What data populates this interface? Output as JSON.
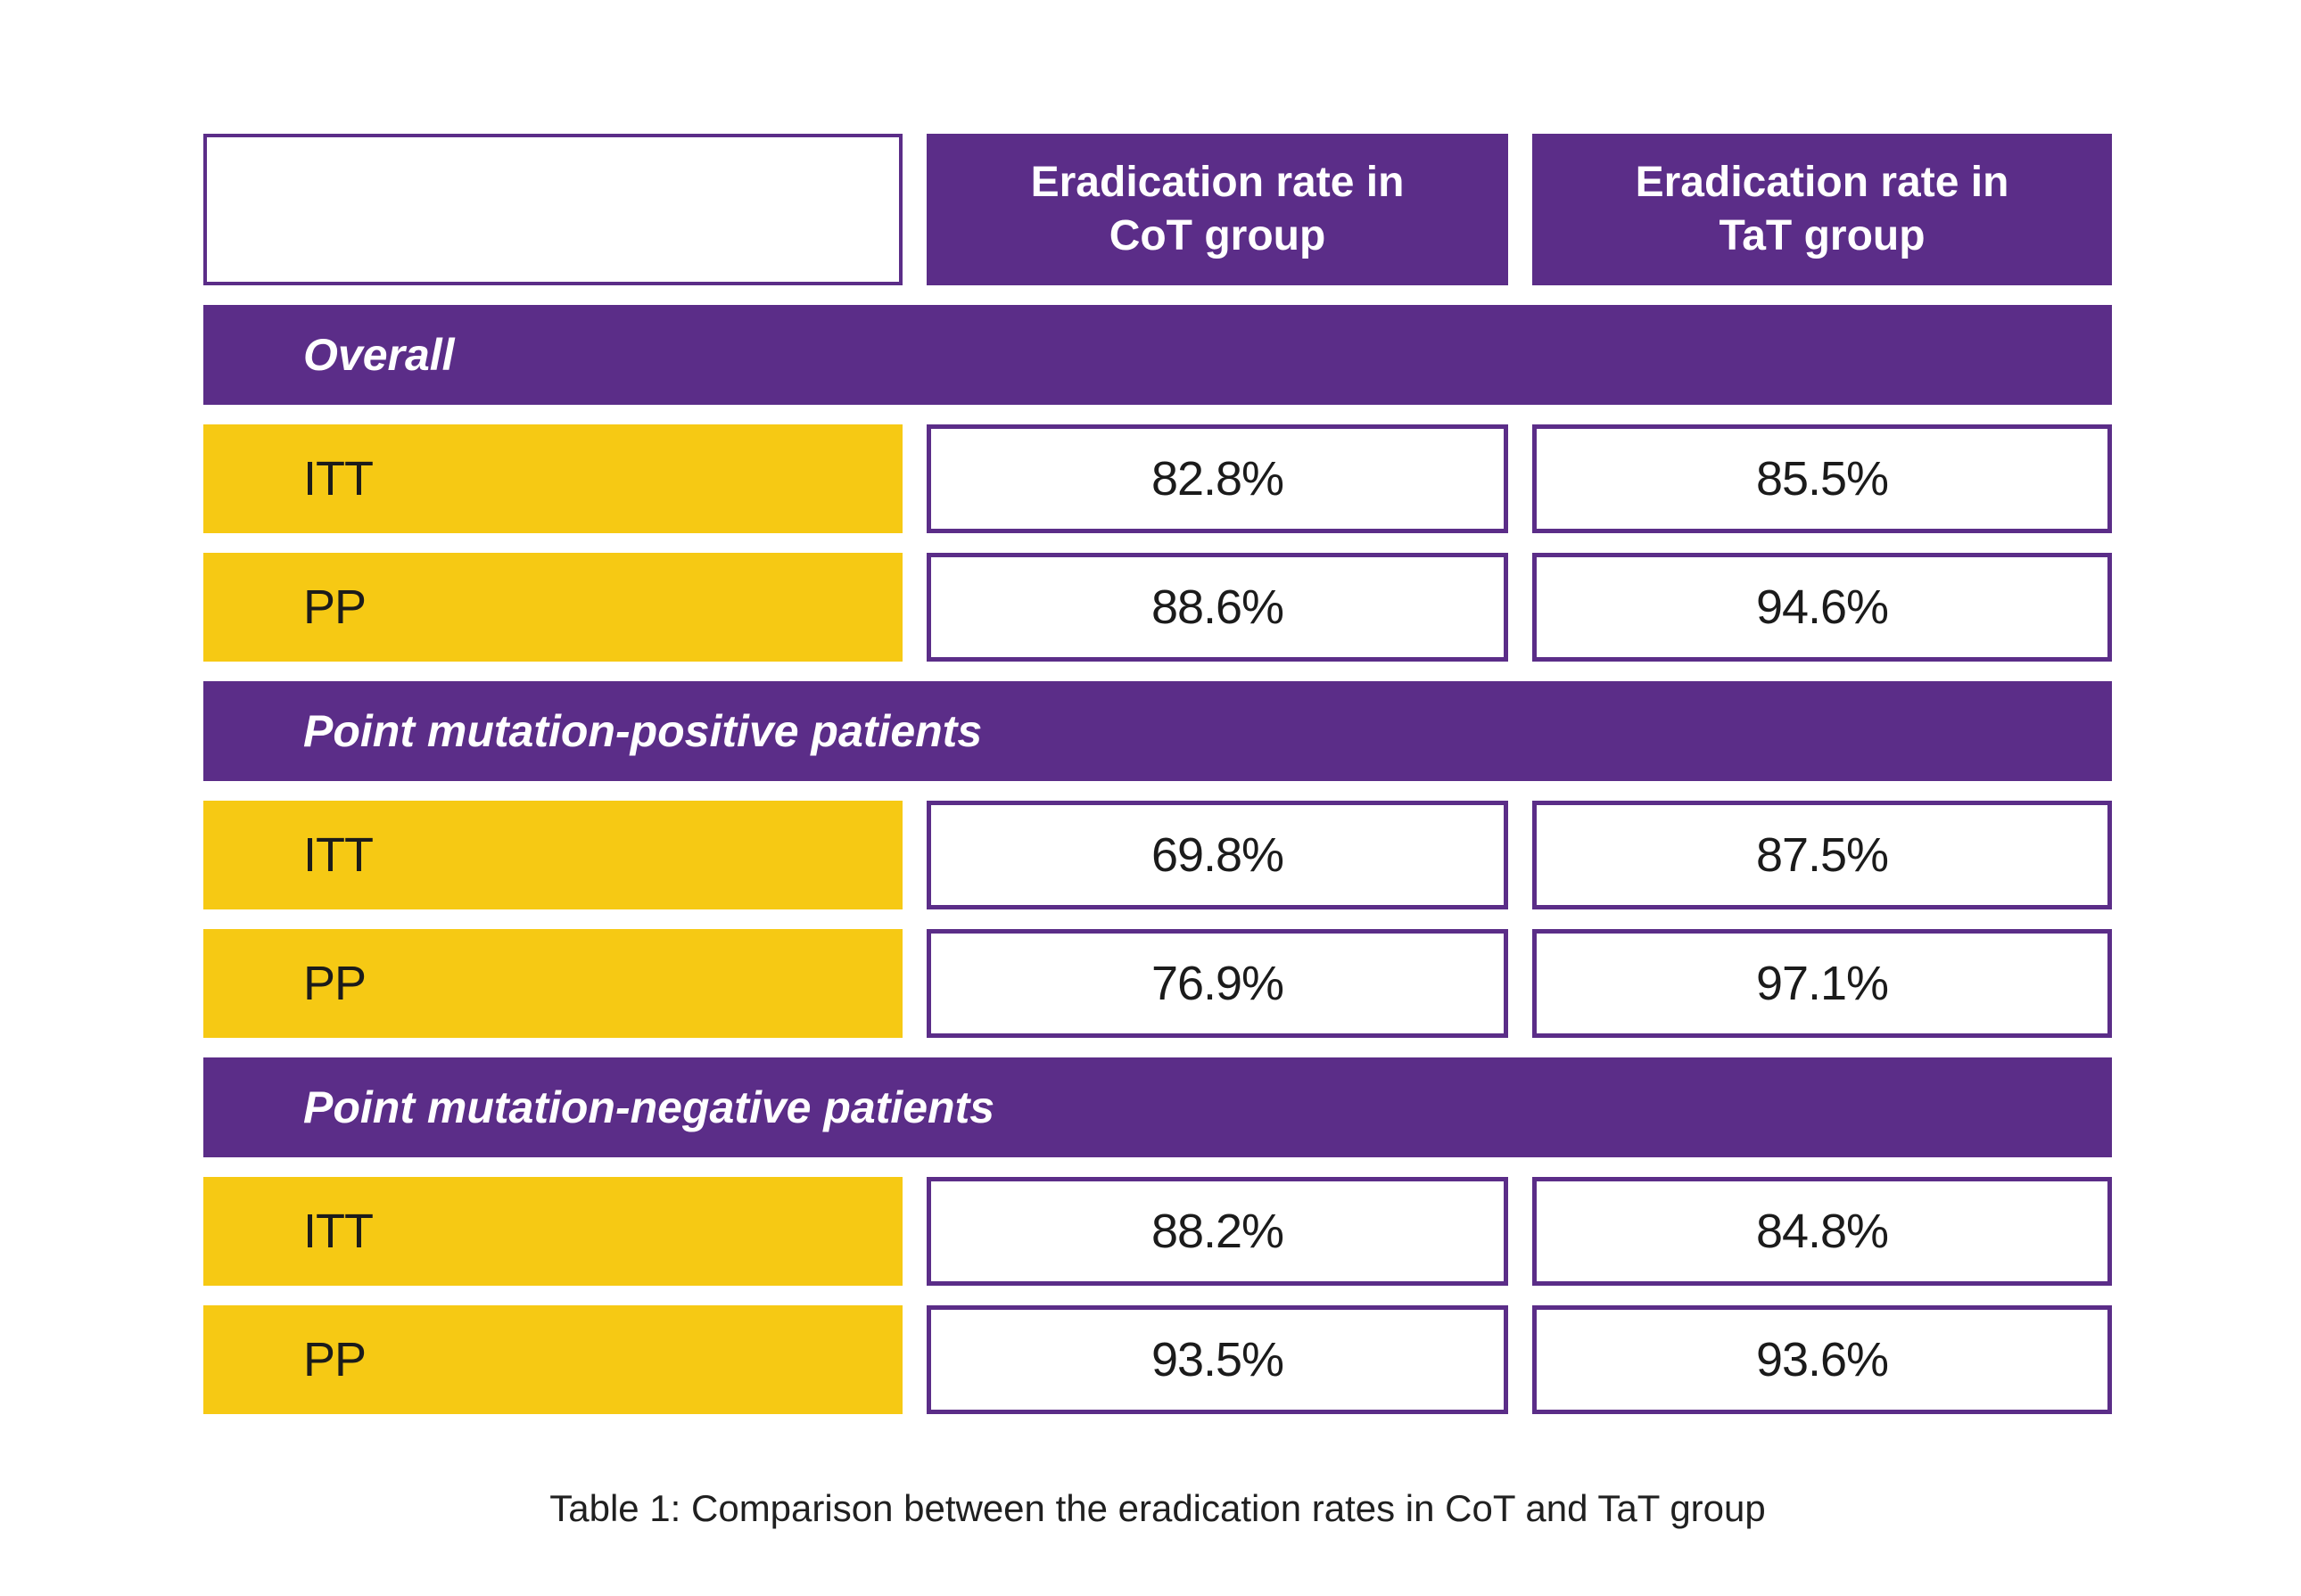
{
  "table": {
    "header": {
      "corner_label": "",
      "columns": [
        "Eradication rate in CoT group",
        "Eradication rate in TaT group"
      ]
    },
    "sections": [
      {
        "title": "Overall",
        "rows": [
          {
            "label": "ITT",
            "cot": "82.8%",
            "tat": "85.5%"
          },
          {
            "label": "PP",
            "cot": "88.6%",
            "tat": "94.6%"
          }
        ]
      },
      {
        "title": "Point mutation-positive patients",
        "rows": [
          {
            "label": "ITT",
            "cot": "69.8%",
            "tat": "87.5%"
          },
          {
            "label": "PP",
            "cot": "76.9%",
            "tat": "97.1%"
          }
        ]
      },
      {
        "title": "Point mutation-negative patients",
        "rows": [
          {
            "label": "ITT",
            "cot": "88.2%",
            "tat": "84.8%"
          },
          {
            "label": "PP",
            "cot": "93.5%",
            "tat": "93.6%"
          }
        ]
      }
    ]
  },
  "caption": "Table 1: Comparison between the eradication rates in CoT and TaT group",
  "colors": {
    "purple": "#5b2d88",
    "yellow": "#f6c914",
    "text_dark": "#1b1b1b",
    "white": "#ffffff"
  },
  "chart_data": {
    "type": "table",
    "title": "Table 1: Comparison between the eradication rates in CoT and TaT group",
    "columns": [
      "",
      "Eradication rate in CoT group",
      "Eradication rate in TaT group"
    ],
    "unit": "%",
    "sections": [
      {
        "section": "Overall",
        "rows": [
          [
            "ITT",
            82.8,
            85.5
          ],
          [
            "PP",
            88.6,
            94.6
          ]
        ]
      },
      {
        "section": "Point mutation-positive patients",
        "rows": [
          [
            "ITT",
            69.8,
            87.5
          ],
          [
            "PP",
            76.9,
            97.1
          ]
        ]
      },
      {
        "section": "Point mutation-negative patients",
        "rows": [
          [
            "ITT",
            88.2,
            84.8
          ],
          [
            "PP",
            93.5,
            93.6
          ]
        ]
      }
    ]
  }
}
